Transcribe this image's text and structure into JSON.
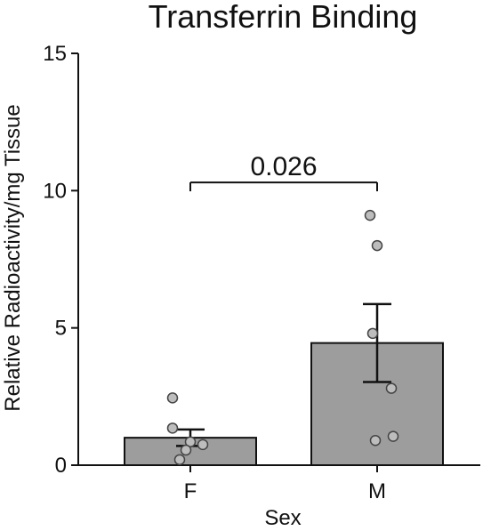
{
  "chart_data": {
    "type": "bar",
    "title": "Transferrin Binding",
    "xlabel": "Sex",
    "ylabel": "Relative Radioactivity/mg Tissue",
    "ylim": [
      0,
      15
    ],
    "yticks": [
      0,
      5,
      10,
      15
    ],
    "categories": [
      "F",
      "M"
    ],
    "values": [
      1.0,
      4.45
    ],
    "errors": [
      0.3,
      1.42
    ],
    "points": [
      [
        2.45,
        1.35,
        0.85,
        0.75,
        0.55,
        0.2
      ],
      [
        9.1,
        8.0,
        4.8,
        2.8,
        1.05,
        0.9
      ]
    ],
    "annotation": {
      "text": "0.026",
      "between": [
        "F",
        "M"
      ],
      "y": 10.3
    },
    "grid": false,
    "colors": {
      "bar_fill": "#9d9d9d",
      "bar_stroke": "#111111",
      "point_fill": "#bdbdbd",
      "point_stroke": "#444444",
      "axis": "#111111",
      "text": "#111111"
    }
  }
}
